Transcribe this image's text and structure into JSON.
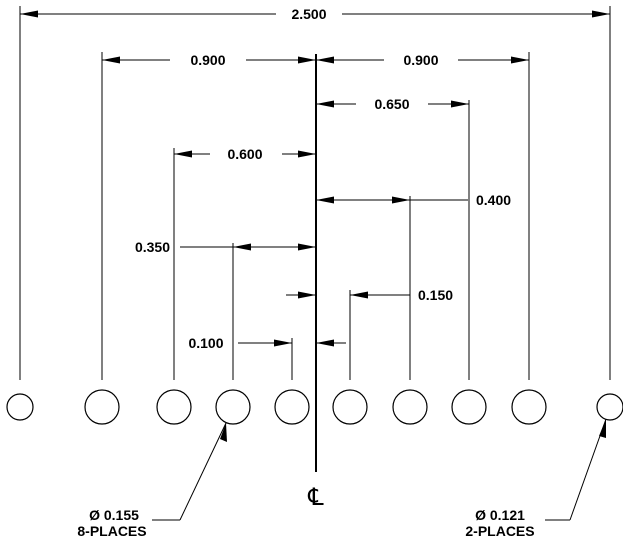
{
  "dimensions": {
    "overall": "2.500",
    "left_0900": "0.900",
    "right_0900": "0.900",
    "d_0650": "0.650",
    "d_0600": "0.600",
    "d_0400": "0.400",
    "d_0350": "0.350",
    "d_0150": "0.150",
    "d_0100": "0.100"
  },
  "centerline": {
    "label": "℄"
  },
  "callouts": {
    "small_diameter": "Ø 0.155",
    "small_count": "8-PLACES",
    "large_diameter": "Ø 0.121",
    "large_count": "2-PLACES"
  }
}
